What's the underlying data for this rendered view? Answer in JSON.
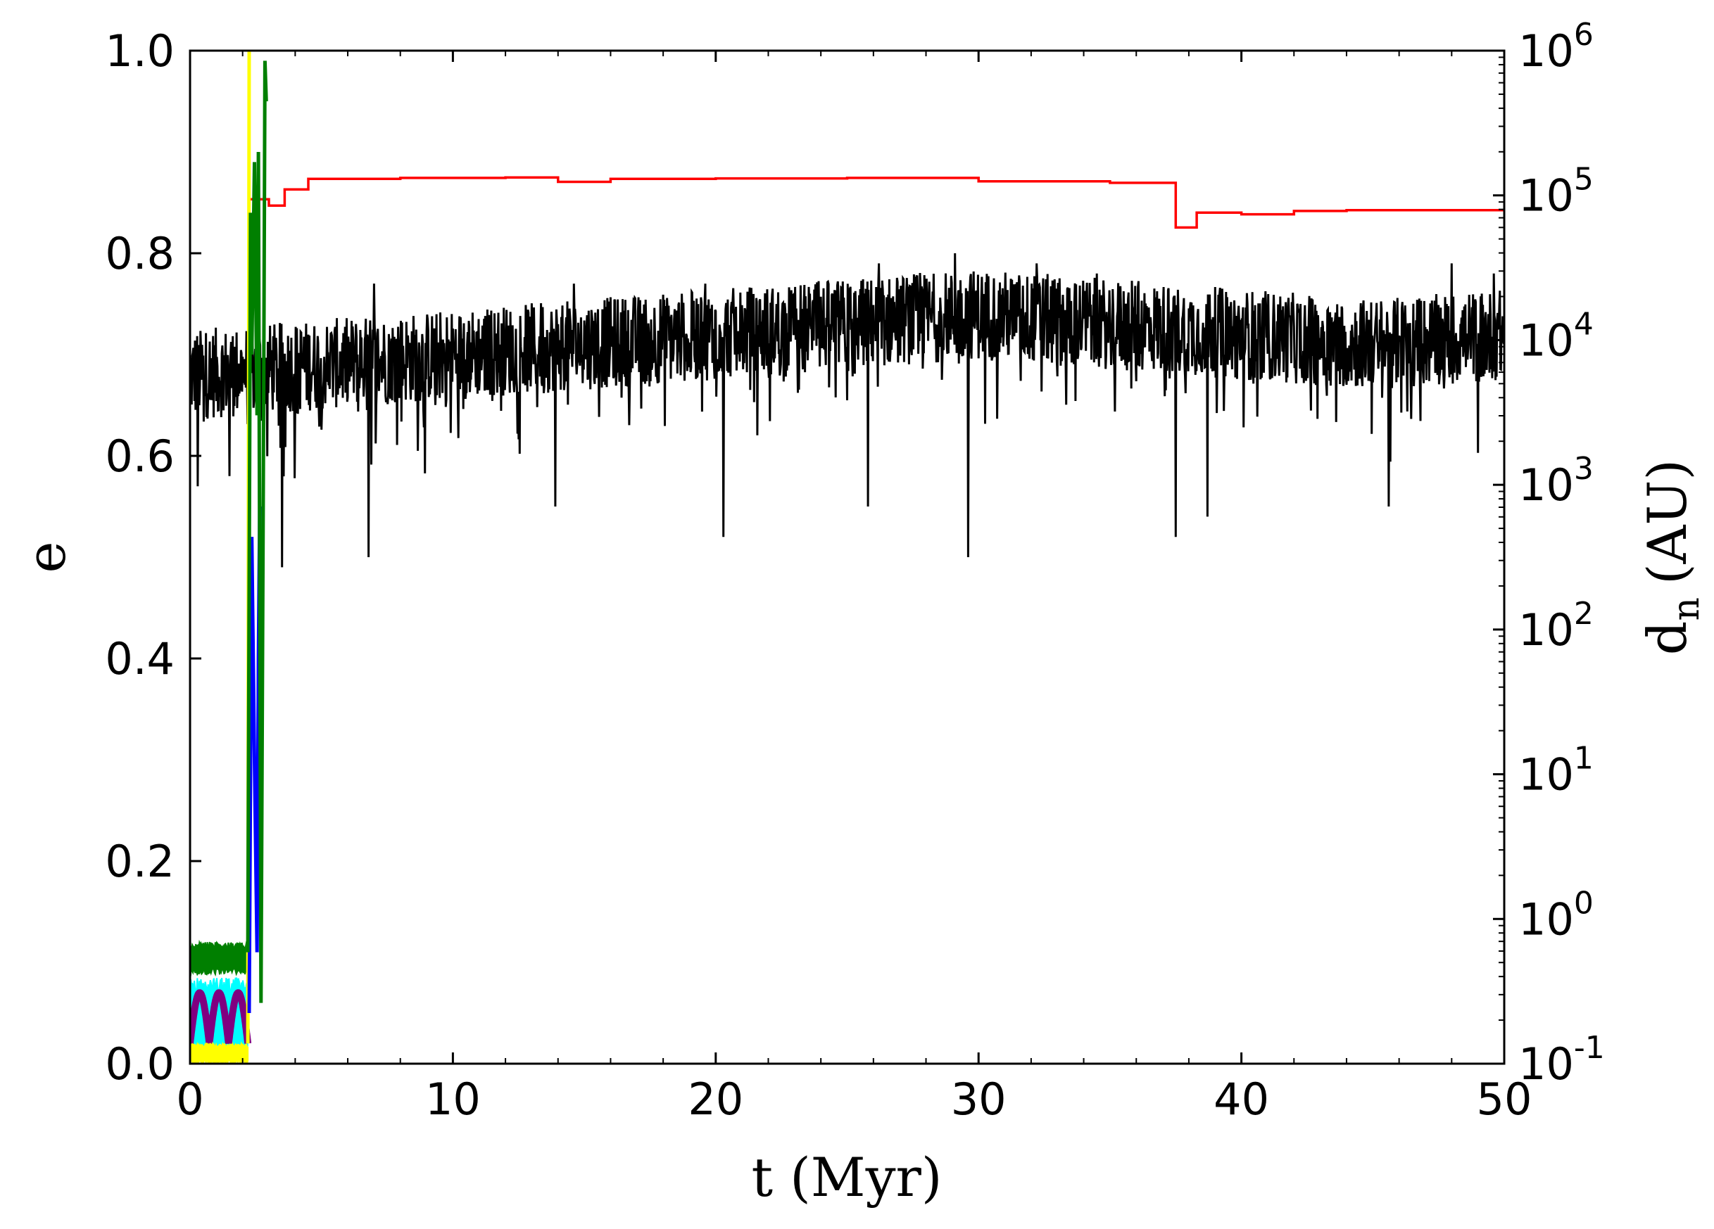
{
  "chart_data": {
    "type": "line",
    "xlabel": "t (Myr)",
    "ylabel": "e",
    "y2label_base": "d",
    "y2label_sub": "n",
    "y2label_unit": "(AU)",
    "xlim": [
      0,
      50
    ],
    "ylim": [
      0,
      1.0
    ],
    "y2lim_log10": [
      -1,
      6
    ],
    "y2_scale": "log",
    "grid": false,
    "legend": "none",
    "x_ticks": [
      "0",
      "10",
      "20",
      "30",
      "40",
      "50"
    ],
    "y_ticks": [
      "0.0",
      "0.2",
      "0.4",
      "0.6",
      "0.8",
      "1.0"
    ],
    "y2_ticks": [
      {
        "base": "10",
        "exp": "-1"
      },
      {
        "base": "10",
        "exp": "0"
      },
      {
        "base": "10",
        "exp": "1"
      },
      {
        "base": "10",
        "exp": "2"
      },
      {
        "base": "10",
        "exp": "3"
      },
      {
        "base": "10",
        "exp": "4"
      },
      {
        "base": "10",
        "exp": "5"
      },
      {
        "base": "10",
        "exp": "6"
      }
    ],
    "colors": {
      "distance": "#ff0000",
      "ecc_black": "#000000",
      "ecc_green": "#007f00",
      "ecc_cyan": "#00ffff",
      "ecc_purple": "#800080",
      "ecc_yellow": "#ffff00",
      "ecc_blue": "#0000ff"
    },
    "series": [
      {
        "axis": "right",
        "style": "step",
        "color_key": "distance",
        "x": [
          2.3,
          3.0,
          3.6,
          4.5,
          8,
          12,
          14,
          16,
          20,
          25,
          30,
          35,
          37.5,
          38.3,
          40,
          42,
          44,
          50
        ],
        "y": [
          94000.0,
          85000.0,
          110000.0,
          130000.0,
          132000.0,
          133000.0,
          124000.0,
          130000.0,
          131000.0,
          132000.0,
          125000.0,
          122000.0,
          60000.0,
          76000.0,
          74000.0,
          78000.0,
          79000.0,
          79000.0
        ]
      },
      {
        "axis": "left",
        "style": "noisy",
        "color_key": "ecc_black",
        "x_range": [
          0,
          50
        ],
        "trend_x": [
          0,
          5,
          10,
          15,
          20,
          25,
          30,
          35,
          40,
          45,
          50
        ],
        "trend_y": [
          0.68,
          0.69,
          0.7,
          0.71,
          0.72,
          0.73,
          0.74,
          0.73,
          0.72,
          0.71,
          0.72
        ],
        "min_values_x": [
          0.3,
          1.5,
          3.5,
          6.8,
          13.9,
          20.3,
          25.8,
          29.6,
          37.5,
          38.7,
          45.6
        ],
        "min_values_y": [
          0.57,
          0.58,
          0.49,
          0.5,
          0.55,
          0.52,
          0.55,
          0.5,
          0.52,
          0.54,
          0.55
        ],
        "max_values_x": [
          7.0,
          14.6,
          19.6,
          26.2,
          29.1,
          32.2,
          34.5,
          48.0,
          49.6
        ],
        "max_values_y": [
          0.77,
          0.77,
          0.77,
          0.79,
          0.8,
          0.79,
          0.78,
          0.79,
          0.78
        ]
      },
      {
        "axis": "left",
        "style": "band",
        "color_key": "ecc_cyan",
        "x_range": [
          0,
          2.2
        ],
        "y_low": 0.01,
        "y_high": 0.085
      },
      {
        "axis": "left",
        "style": "band",
        "color_key": "ecc_green",
        "x_range": [
          0,
          2.2
        ],
        "y_low": 0.088,
        "y_high": 0.12
      },
      {
        "axis": "left",
        "style": "arches",
        "color_key": "ecc_purple",
        "x_range": [
          0,
          2.2
        ],
        "y_low": 0.02,
        "y_high": 0.07,
        "cycles": 3
      },
      {
        "axis": "left",
        "style": "band",
        "color_key": "ecc_yellow",
        "x_range": [
          0,
          2.2
        ],
        "y_low": 0.0,
        "y_high": 0.02
      },
      {
        "axis": "left",
        "style": "path",
        "color_key": "ecc_yellow",
        "x": [
          2.2,
          2.22,
          2.25,
          2.28
        ],
        "y": [
          0.02,
          0.5,
          1.0,
          1.0
        ]
      },
      {
        "axis": "left",
        "style": "path",
        "color_key": "ecc_blue",
        "x": [
          2.25,
          2.35,
          2.45,
          2.55,
          2.6,
          2.65
        ],
        "y": [
          0.05,
          0.52,
          0.3,
          0.11,
          0.4,
          0.55
        ]
      },
      {
        "axis": "left",
        "style": "path",
        "color_key": "ecc_green",
        "x": [
          2.2,
          2.3,
          2.35,
          2.45,
          2.55,
          2.6,
          2.7,
          2.8,
          2.85,
          2.9
        ],
        "y": [
          0.11,
          0.84,
          0.7,
          0.89,
          0.64,
          0.9,
          0.06,
          0.66,
          0.99,
          0.95
        ]
      }
    ]
  }
}
